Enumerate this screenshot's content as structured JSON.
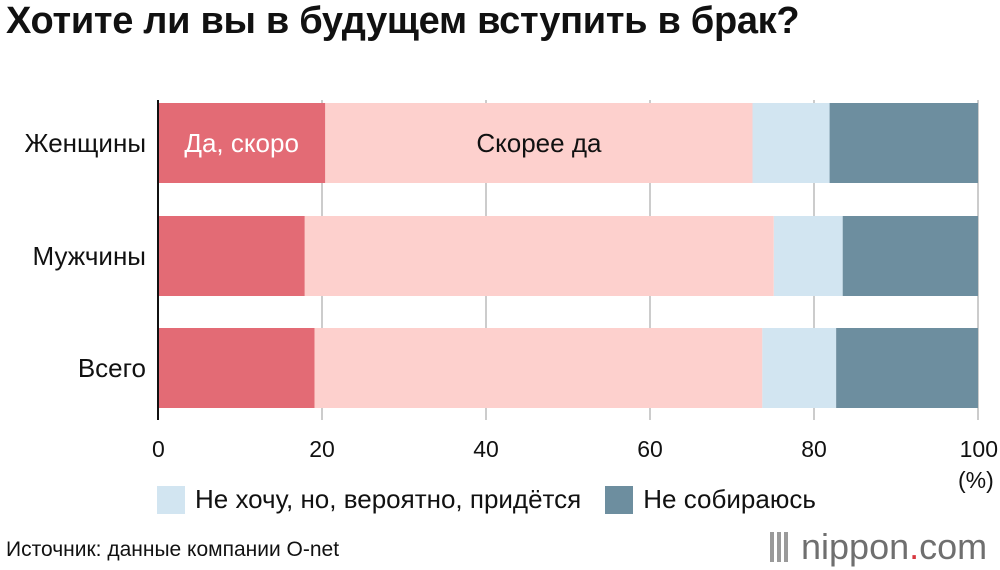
{
  "title": "Хотите ли вы в будущем вступить в брак?",
  "unit_label": "(%)",
  "source": "Источник: данные компании O-net",
  "logo": {
    "name": "nippon",
    "dot": ".",
    "tld": "com"
  },
  "colors": {
    "yes_soon": "#e36b75",
    "probably_yes": "#fdd0cd",
    "no_but_will": "#d2e5f1",
    "not_planning": "#6d8e9f"
  },
  "legend": [
    {
      "label": "Не хочу, но, вероятно, придётся",
      "color": "#d2e5f1"
    },
    {
      "label": "Не собираюсь",
      "color": "#6d8e9f"
    }
  ],
  "chart_data": {
    "type": "bar",
    "orientation": "horizontal",
    "stacked": true,
    "categories": [
      "Женщины",
      "Мужчины",
      "Всего"
    ],
    "xlim": [
      0,
      100
    ],
    "xticks": [
      0,
      20,
      40,
      60,
      80,
      100
    ],
    "grid": true,
    "series": [
      {
        "name": "Да, скоро",
        "color": "#e36b75",
        "values": [
          20.4,
          17.9,
          19.1
        ]
      },
      {
        "name": "Скорее да",
        "color": "#fdd0cd",
        "values": [
          52.1,
          57.2,
          54.6
        ]
      },
      {
        "name": "Не хочу, но, вероятно, придётся",
        "color": "#d2e5f1",
        "values": [
          9.4,
          8.4,
          9.0
        ]
      },
      {
        "name": "Не собираюсь",
        "color": "#6d8e9f",
        "values": [
          18.1,
          16.5,
          17.3
        ]
      }
    ],
    "inline_labels": [
      {
        "series": 0,
        "category": 0,
        "text": "Да, скоро",
        "color": "#ffffff"
      },
      {
        "series": 1,
        "category": 0,
        "text": "Скорее да",
        "color": "#111111"
      }
    ]
  }
}
